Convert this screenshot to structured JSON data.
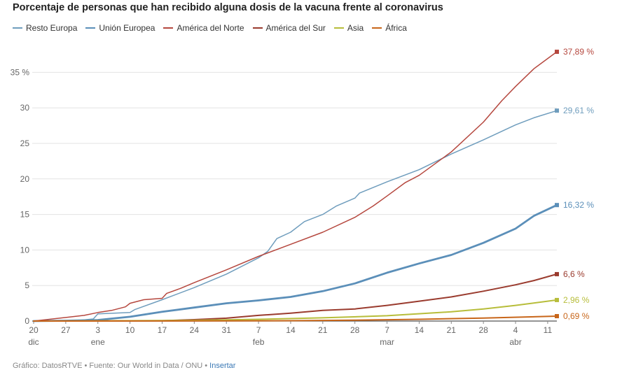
{
  "title": "Porcentaje de personas que han recibido alguna dosis de la vacuna frente al coronavirus",
  "footer": {
    "source": "Gráfico: DatosRTVE • Fuente: Our World in Data / ONU • ",
    "link": "Insertar"
  },
  "chart_data": {
    "type": "line",
    "title": "Porcentaje de personas que han recibido alguna dosis de la vacuna frente al coronavirus",
    "x_start": "2020-12-20",
    "x_end": "2021-04-13",
    "ylim": [
      0,
      37.5
    ],
    "y_ticks": [
      0,
      5,
      10,
      15,
      20,
      25,
      30,
      35
    ],
    "y_tick_labels": [
      "0",
      "5",
      "10",
      "15",
      "20",
      "25",
      "30",
      "35 %"
    ],
    "grid": true,
    "legend_position": "top-left",
    "x_ticks": [
      {
        "date": "2020-12-20",
        "day": "20",
        "month": "dic"
      },
      {
        "date": "2020-12-27",
        "day": "27",
        "month": ""
      },
      {
        "date": "2021-01-03",
        "day": "3",
        "month": "ene"
      },
      {
        "date": "2021-01-10",
        "day": "10",
        "month": ""
      },
      {
        "date": "2021-01-17",
        "day": "17",
        "month": ""
      },
      {
        "date": "2021-01-24",
        "day": "24",
        "month": ""
      },
      {
        "date": "2021-01-31",
        "day": "31",
        "month": ""
      },
      {
        "date": "2021-02-07",
        "day": "7",
        "month": "feb"
      },
      {
        "date": "2021-02-14",
        "day": "14",
        "month": ""
      },
      {
        "date": "2021-02-21",
        "day": "21",
        "month": ""
      },
      {
        "date": "2021-02-28",
        "day": "28",
        "month": ""
      },
      {
        "date": "2021-03-07",
        "day": "7",
        "month": "mar"
      },
      {
        "date": "2021-03-14",
        "day": "14",
        "month": ""
      },
      {
        "date": "2021-03-21",
        "day": "21",
        "month": ""
      },
      {
        "date": "2021-03-28",
        "day": "28",
        "month": ""
      },
      {
        "date": "2021-04-04",
        "day": "4",
        "month": "abr"
      },
      {
        "date": "2021-04-11",
        "day": "11",
        "month": ""
      }
    ],
    "series": [
      {
        "name": "Resto Europa",
        "color": "#6f9dbd",
        "line_width": 1.5,
        "end_label": "",
        "points": [
          [
            "2020-12-20",
            0
          ],
          [
            "2020-12-30",
            0.1
          ],
          [
            "2021-01-02",
            0.3
          ],
          [
            "2021-01-03",
            1.0
          ],
          [
            "2021-01-10",
            1.2
          ],
          [
            "2021-01-11",
            1.6
          ],
          [
            "2021-01-17",
            3.0
          ],
          [
            "2021-01-24",
            4.7
          ],
          [
            "2021-01-31",
            6.6
          ],
          [
            "2021-02-07",
            8.9
          ],
          [
            "2021-02-09",
            9.8
          ],
          [
            "2021-02-11",
            11.6
          ],
          [
            "2021-02-14",
            12.5
          ],
          [
            "2021-02-17",
            14.0
          ],
          [
            "2021-02-21",
            15.0
          ],
          [
            "2021-02-24",
            16.2
          ],
          [
            "2021-02-28",
            17.3
          ],
          [
            "2021-03-01",
            18.0
          ],
          [
            "2021-03-07",
            19.6
          ],
          [
            "2021-03-14",
            21.3
          ],
          [
            "2021-03-21",
            23.5
          ],
          [
            "2021-03-28",
            25.5
          ],
          [
            "2021-04-04",
            27.6
          ],
          [
            "2021-04-08",
            28.6
          ],
          [
            "2021-04-13",
            29.61
          ]
        ]
      },
      {
        "name": "Unión Europea",
        "color": "#5b8fb9",
        "line_width": 2.8,
        "end_label": "16,32 %",
        "end_marker": true,
        "points": [
          [
            "2020-12-20",
            0
          ],
          [
            "2020-12-27",
            0.05
          ],
          [
            "2021-01-03",
            0.15
          ],
          [
            "2021-01-10",
            0.6
          ],
          [
            "2021-01-17",
            1.3
          ],
          [
            "2021-01-24",
            1.9
          ],
          [
            "2021-01-31",
            2.5
          ],
          [
            "2021-02-07",
            2.9
          ],
          [
            "2021-02-14",
            3.4
          ],
          [
            "2021-02-21",
            4.2
          ],
          [
            "2021-02-28",
            5.3
          ],
          [
            "2021-03-07",
            6.8
          ],
          [
            "2021-03-14",
            8.1
          ],
          [
            "2021-03-21",
            9.3
          ],
          [
            "2021-03-28",
            11.0
          ],
          [
            "2021-04-04",
            13.0
          ],
          [
            "2021-04-08",
            14.8
          ],
          [
            "2021-04-13",
            16.32
          ]
        ]
      },
      {
        "name": "América del Norte",
        "color": "#b5473e",
        "line_width": 1.5,
        "end_label": "37,89 %",
        "end_marker": true,
        "points": [
          [
            "2020-12-20",
            0
          ],
          [
            "2020-12-27",
            0.5
          ],
          [
            "2020-12-31",
            0.8
          ],
          [
            "2021-01-03",
            1.2
          ],
          [
            "2021-01-06",
            1.5
          ],
          [
            "2021-01-09",
            2.0
          ],
          [
            "2021-01-10",
            2.5
          ],
          [
            "2021-01-13",
            3.0
          ],
          [
            "2021-01-17",
            3.2
          ],
          [
            "2021-01-18",
            3.9
          ],
          [
            "2021-01-21",
            4.6
          ],
          [
            "2021-01-24",
            5.4
          ],
          [
            "2021-01-31",
            7.2
          ],
          [
            "2021-02-07",
            9.1
          ],
          [
            "2021-02-14",
            10.8
          ],
          [
            "2021-02-21",
            12.5
          ],
          [
            "2021-02-28",
            14.6
          ],
          [
            "2021-03-04",
            16.2
          ],
          [
            "2021-03-07",
            17.6
          ],
          [
            "2021-03-11",
            19.5
          ],
          [
            "2021-03-14",
            20.5
          ],
          [
            "2021-03-21",
            23.8
          ],
          [
            "2021-03-28",
            28.0
          ],
          [
            "2021-04-01",
            31.0
          ],
          [
            "2021-04-04",
            33.0
          ],
          [
            "2021-04-08",
            35.5
          ],
          [
            "2021-04-13",
            37.89
          ]
        ]
      },
      {
        "name": "América del Sur",
        "color": "#9a3b2e",
        "line_width": 2.0,
        "end_label": "6,6 %",
        "end_marker": true,
        "points": [
          [
            "2020-12-20",
            0
          ],
          [
            "2021-01-03",
            0.02
          ],
          [
            "2021-01-17",
            0.05
          ],
          [
            "2021-01-24",
            0.2
          ],
          [
            "2021-01-31",
            0.4
          ],
          [
            "2021-02-07",
            0.8
          ],
          [
            "2021-02-14",
            1.1
          ],
          [
            "2021-02-21",
            1.5
          ],
          [
            "2021-02-28",
            1.7
          ],
          [
            "2021-03-07",
            2.2
          ],
          [
            "2021-03-14",
            2.8
          ],
          [
            "2021-03-21",
            3.4
          ],
          [
            "2021-03-28",
            4.2
          ],
          [
            "2021-04-04",
            5.1
          ],
          [
            "2021-04-08",
            5.7
          ],
          [
            "2021-04-13",
            6.6
          ]
        ]
      },
      {
        "name": "Asia",
        "color": "#b7bd3a",
        "line_width": 2.0,
        "end_label": "2,96 %",
        "end_marker": true,
        "points": [
          [
            "2020-12-20",
            0
          ],
          [
            "2021-01-10",
            0.05
          ],
          [
            "2021-01-24",
            0.1
          ],
          [
            "2021-02-07",
            0.25
          ],
          [
            "2021-02-21",
            0.45
          ],
          [
            "2021-03-07",
            0.75
          ],
          [
            "2021-03-21",
            1.3
          ],
          [
            "2021-03-28",
            1.7
          ],
          [
            "2021-04-04",
            2.2
          ],
          [
            "2021-04-13",
            2.96
          ]
        ]
      },
      {
        "name": "África",
        "color": "#c8661a",
        "line_width": 2.0,
        "end_label": "0,69 %",
        "end_marker": true,
        "points": [
          [
            "2020-12-20",
            0
          ],
          [
            "2021-01-31",
            0.02
          ],
          [
            "2021-02-14",
            0.05
          ],
          [
            "2021-02-28",
            0.12
          ],
          [
            "2021-03-14",
            0.25
          ],
          [
            "2021-03-28",
            0.42
          ],
          [
            "2021-04-13",
            0.69
          ]
        ]
      },
      {
        "name": "Resto Europa (label)",
        "color": "#6f9dbd",
        "line_width": 0,
        "end_label": "29,61 %",
        "end_marker": true,
        "label_only": true,
        "points": [
          [
            "2021-04-13",
            29.61
          ]
        ]
      }
    ]
  }
}
